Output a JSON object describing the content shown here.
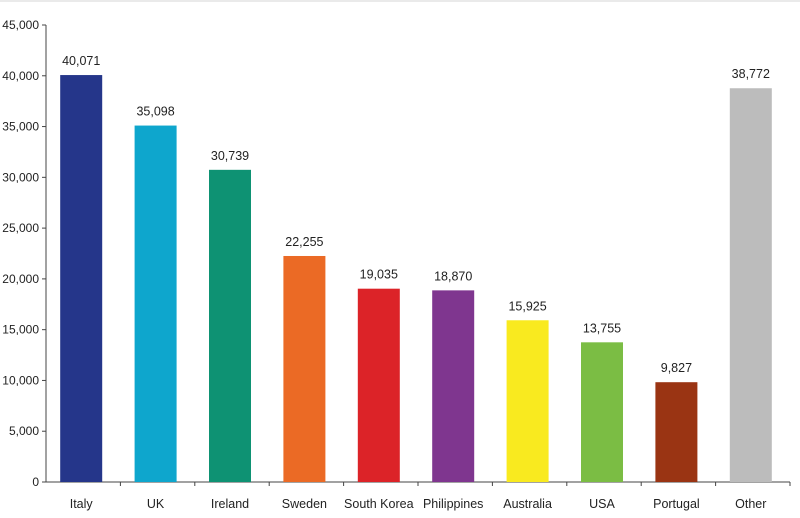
{
  "chart_data": {
    "type": "bar",
    "title": "",
    "xlabel": "",
    "ylabel": "",
    "categories": [
      "Italy",
      "UK",
      "Ireland",
      "Sweden",
      "South Korea",
      "Philippines",
      "Australia",
      "USA",
      "Portugal",
      "Other"
    ],
    "values": [
      40071,
      35098,
      30739,
      22255,
      19035,
      18870,
      15925,
      13755,
      9827,
      38772
    ],
    "data_labels": [
      "40,071",
      "35,098",
      "30,739",
      "22,255",
      "19,035",
      "18,870",
      "15,925",
      "13,755",
      "9,827",
      "38,772"
    ],
    "colors": [
      "#25368a",
      "#0ea6cd",
      "#0e9273",
      "#eb6a25",
      "#dc2328",
      "#7f368f",
      "#f9ea1f",
      "#7bbd44",
      "#9a3413",
      "#bcbcbc"
    ],
    "ylim": [
      0,
      45000
    ],
    "yticks": [
      0,
      5000,
      10000,
      15000,
      20000,
      25000,
      30000,
      35000,
      40000,
      45000
    ],
    "ytick_labels": [
      "0",
      "5,000",
      "10,000",
      "15,000",
      "20,000",
      "25,000",
      "30,000",
      "35,000",
      "40,000",
      "45,000"
    ],
    "grid": false,
    "legend": "none"
  }
}
